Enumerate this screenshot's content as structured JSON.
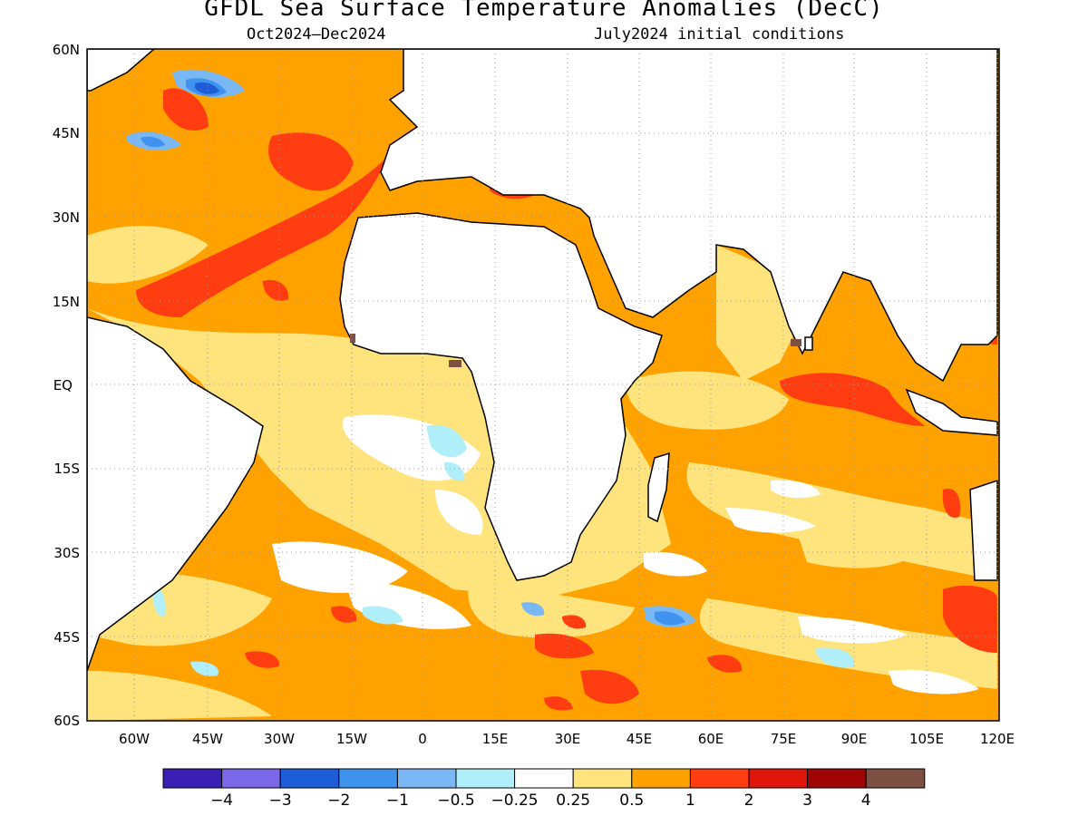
{
  "title": "GFDL Sea Surface Temperature Anomalies (DecC)",
  "subtitle_left": "Oct2024–Dec2024",
  "subtitle_right": "July2024 initial conditions",
  "lat_labels": [
    "60N",
    "45N",
    "30N",
    "15N",
    "EQ",
    "15S",
    "30S",
    "45S",
    "60S"
  ],
  "lon_labels": [
    "60W",
    "45W",
    "30W",
    "15W",
    "0",
    "15E",
    "30E",
    "45E",
    "60E",
    "75E",
    "90E",
    "105E",
    "120E"
  ],
  "colorbar": {
    "colors": [
      "#3a1fb4",
      "#7b68e8",
      "#1d5ed8",
      "#3f93ef",
      "#79b8f5",
      "#b0eefa",
      "#ffffff",
      "#ffe47e",
      "#ffa200",
      "#ff3d10",
      "#de1508",
      "#a00505",
      "#7c5043"
    ],
    "labels": [
      "−4",
      "−3",
      "−2",
      "−1",
      "−0.5",
      "−0.25",
      "0.25",
      "0.5",
      "1",
      "2",
      "3",
      "4"
    ]
  },
  "colors": {
    "warm_light": "#ffe47e",
    "warm": "#ffa200",
    "hot": "#ff3d10",
    "cool_light": "#b0eefa",
    "cool": "#79b8f5",
    "cold": "#3f93ef",
    "colder": "#1d5ed8",
    "land": "#ffffff",
    "coast": "#000000"
  }
}
